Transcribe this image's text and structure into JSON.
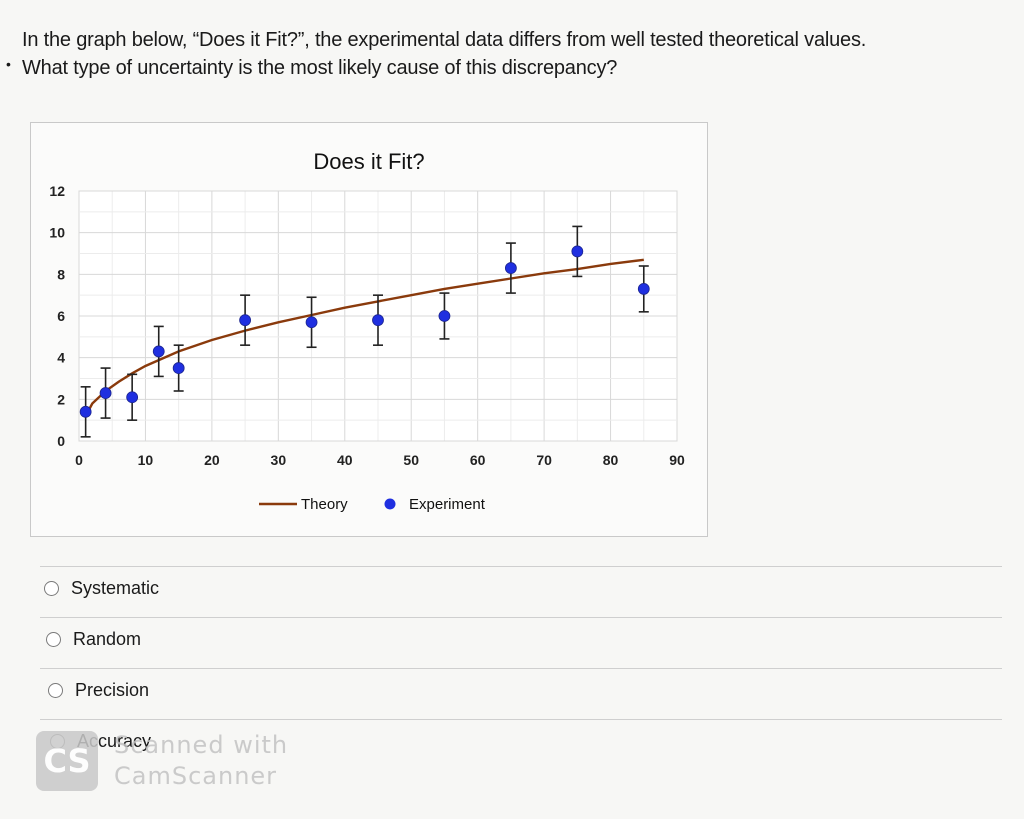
{
  "question": {
    "line1": "In the graph below, “Does it Fit?”, the experimental data differs from well tested theoretical values.",
    "line2": "What type of uncertainty is the most likely cause of this discrepancy?"
  },
  "options": [
    "Systematic",
    "Random",
    "Precision",
    "Accuracy"
  ],
  "watermark": {
    "line1": "Scanned with",
    "line2": "CamScanner",
    "logo": "CS"
  },
  "chart_data": {
    "type": "scatter",
    "title": "Does it Fit?",
    "xlim": [
      0,
      90
    ],
    "ylim": [
      0,
      12
    ],
    "x_ticks": [
      0,
      10,
      20,
      30,
      40,
      50,
      60,
      70,
      80,
      90
    ],
    "y_ticks": [
      0,
      2,
      4,
      6,
      8,
      10,
      12
    ],
    "grid": true,
    "legend_position": "bottom",
    "colors": {
      "theory": "#8a3a0c",
      "experiment": "#1f2fe0"
    },
    "series": [
      {
        "name": "Theory",
        "kind": "line",
        "x": [
          1,
          2,
          4,
          6,
          8,
          10,
          15,
          20,
          25,
          30,
          35,
          40,
          45,
          50,
          55,
          60,
          65,
          70,
          75,
          80,
          85
        ],
        "y": [
          1.2,
          1.8,
          2.4,
          2.85,
          3.25,
          3.6,
          4.3,
          4.85,
          5.3,
          5.7,
          6.05,
          6.4,
          6.7,
          7.0,
          7.3,
          7.55,
          7.8,
          8.05,
          8.25,
          8.5,
          8.7
        ]
      },
      {
        "name": "Experiment",
        "kind": "points_with_error",
        "x": [
          1,
          4,
          8,
          12,
          15,
          25,
          35,
          45,
          55,
          65,
          75,
          85
        ],
        "y": [
          1.4,
          2.3,
          2.1,
          4.3,
          3.5,
          5.8,
          5.7,
          5.8,
          6.0,
          8.3,
          9.1,
          7.3
        ],
        "error": [
          1.2,
          1.2,
          1.1,
          1.2,
          1.1,
          1.2,
          1.2,
          1.2,
          1.1,
          1.2,
          1.2,
          1.1
        ]
      }
    ]
  }
}
